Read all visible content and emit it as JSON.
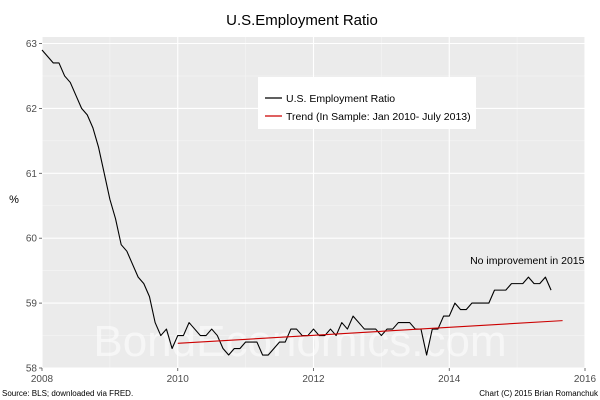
{
  "chart_data": {
    "type": "line",
    "title": "U.S.Employment Ratio",
    "xlabel": "",
    "ylabel": "%",
    "xlim": [
      2008,
      2016
    ],
    "ylim": [
      58,
      63.1
    ],
    "x_ticks": [
      2008,
      2010,
      2012,
      2014,
      2016
    ],
    "y_ticks": [
      58,
      59,
      60,
      61,
      62,
      63
    ],
    "grid": true,
    "legend_position": "top-center",
    "series": [
      {
        "name": "U.S. Employment Ratio",
        "color": "#000000",
        "x_start": 2008.0,
        "x_step": 0.0833333,
        "values": [
          62.9,
          62.8,
          62.7,
          62.7,
          62.5,
          62.4,
          62.2,
          62.0,
          61.9,
          61.7,
          61.4,
          61.0,
          60.6,
          60.3,
          59.9,
          59.8,
          59.6,
          59.4,
          59.3,
          59.1,
          58.7,
          58.5,
          58.6,
          58.3,
          58.5,
          58.5,
          58.7,
          58.6,
          58.5,
          58.5,
          58.6,
          58.5,
          58.3,
          58.2,
          58.3,
          58.3,
          58.4,
          58.4,
          58.4,
          58.2,
          58.2,
          58.3,
          58.4,
          58.4,
          58.6,
          58.6,
          58.5,
          58.5,
          58.6,
          58.5,
          58.5,
          58.6,
          58.5,
          58.7,
          58.6,
          58.8,
          58.7,
          58.6,
          58.6,
          58.6,
          58.5,
          58.6,
          58.6,
          58.7,
          58.7,
          58.7,
          58.6,
          58.6,
          58.2,
          58.6,
          58.6,
          58.8,
          58.8,
          59.0,
          58.9,
          58.9,
          59.0,
          59.0,
          59.0,
          59.0,
          59.2,
          59.2,
          59.2,
          59.3,
          59.3,
          59.3,
          59.4,
          59.3,
          59.3,
          59.4,
          59.2
        ]
      },
      {
        "name": "Trend (In Sample: Jan 2010- July 2013)",
        "color": "#cc0000",
        "x": [
          2010.0,
          2015.67
        ],
        "values": [
          58.38,
          58.73
        ]
      }
    ],
    "annotations": [
      {
        "text": "No improvement in 2015",
        "x": 2015.15,
        "y": 59.6
      }
    ],
    "watermark": "BondEconomics.com",
    "source_text": "Source: BLS; downloaded via FRED.",
    "credit_text": "Chart (C) 2015 Brian Romanchuk"
  },
  "colors": {
    "panel_bg": "#ebebeb",
    "grid_major": "#ffffff",
    "grid_minor": "#f5f5f5",
    "trend": "#cc0000",
    "employment": "#000000"
  }
}
